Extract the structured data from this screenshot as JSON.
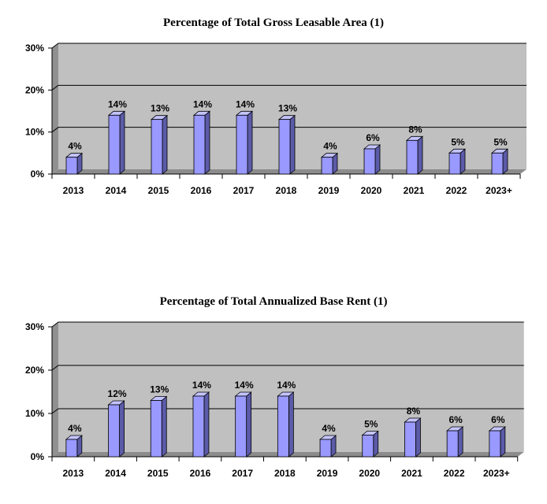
{
  "colors": {
    "plot_back": "#c0c0c0",
    "plot_side": "#909090",
    "floor": "#8c8c8c",
    "bar_front": "#9999ff",
    "bar_side": "#5b5ba8",
    "bar_top": "#c4c4ff",
    "gridline": "#000000"
  },
  "chart_data": [
    {
      "type": "bar",
      "title": "Percentage of Total Gross Leasable Area (1)",
      "categories": [
        "2013",
        "2014",
        "2015",
        "2016",
        "2017",
        "2018",
        "2019",
        "2020",
        "2021",
        "2022",
        "2023+"
      ],
      "values": [
        4,
        14,
        13,
        14,
        14,
        13,
        4,
        6,
        8,
        5,
        5
      ],
      "data_labels": [
        "4%",
        "14%",
        "13%",
        "14%",
        "14%",
        "13%",
        "4%",
        "6%",
        "8%",
        "5%",
        "5%"
      ],
      "ylim": [
        0,
        30
      ],
      "yticks": [
        0,
        10,
        20,
        30
      ],
      "ytick_labels": [
        "0%",
        "10%",
        "20%",
        "30%"
      ],
      "grid": true,
      "legend": "none"
    },
    {
      "type": "bar",
      "title": "Percentage of Total Annualized Base Rent (1)",
      "categories": [
        "2013",
        "2014",
        "2015",
        "2016",
        "2017",
        "2018",
        "2019",
        "2020",
        "2021",
        "2022",
        "2023+"
      ],
      "values": [
        4,
        12,
        13,
        14,
        14,
        14,
        4,
        5,
        8,
        6,
        6
      ],
      "data_labels": [
        "4%",
        "12%",
        "13%",
        "14%",
        "14%",
        "14%",
        "4%",
        "5%",
        "8%",
        "6%",
        "6%"
      ],
      "ylim": [
        0,
        30
      ],
      "yticks": [
        0,
        10,
        20,
        30
      ],
      "ytick_labels": [
        "0%",
        "10%",
        "20%",
        "30%"
      ],
      "grid": true,
      "legend": "none"
    }
  ]
}
